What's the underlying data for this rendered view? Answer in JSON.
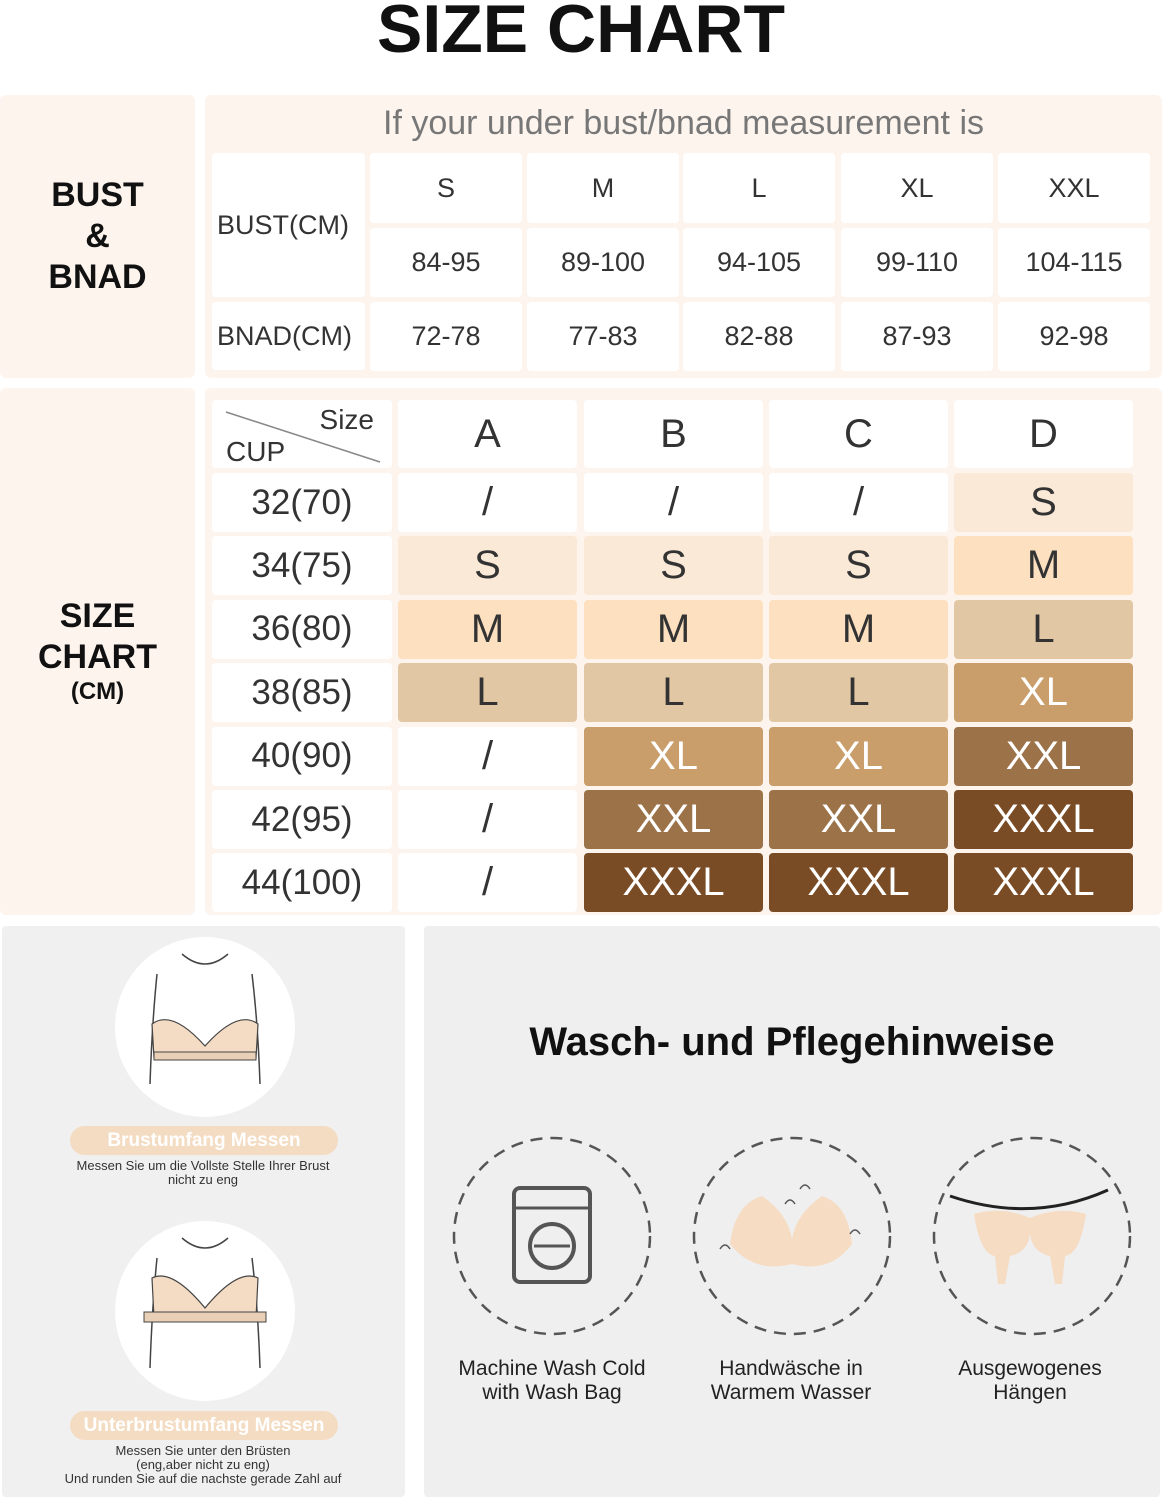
{
  "title": "SIZE CHART",
  "bust_section": {
    "label_lines": [
      "BUST",
      "&",
      "BNAD"
    ],
    "heading": "If your under bust/bnad measurement is",
    "sizes": [
      "S",
      "M",
      "L",
      "XL",
      "XXL"
    ],
    "rows": [
      {
        "label": "BUST(CM)",
        "values": [
          "84-95",
          "89-100",
          "94-105",
          "99-110",
          "104-115"
        ]
      },
      {
        "label": "BNAD(CM)",
        "values": [
          "72-78",
          "77-83",
          "82-88",
          "87-93",
          "92-98"
        ]
      }
    ]
  },
  "size_chart": {
    "label_lines": [
      "SIZE",
      "CHART",
      "(CM)"
    ],
    "corner_top": "Size",
    "corner_bottom": "CUP",
    "cups": [
      "A",
      "B",
      "C",
      "D"
    ],
    "rows": [
      {
        "band": "32(70)",
        "cells": [
          "/",
          "/",
          "/",
          "S"
        ],
        "colors": [
          "#ffffff",
          "#ffffff",
          "#ffffff",
          "#fbe9d7"
        ]
      },
      {
        "band": "34(75)",
        "cells": [
          "S",
          "S",
          "S",
          "M"
        ],
        "colors": [
          "#fbe9d7",
          "#fbe9d7",
          "#fbe9d7",
          "#fde0bf"
        ]
      },
      {
        "band": "36(80)",
        "cells": [
          "M",
          "M",
          "M",
          "L"
        ],
        "colors": [
          "#fde0bf",
          "#fde0bf",
          "#fde0bf",
          "#e2c7a5"
        ]
      },
      {
        "band": "38(85)",
        "cells": [
          "L",
          "L",
          "L",
          "XL"
        ],
        "colors": [
          "#e2c7a5",
          "#e2c7a5",
          "#e2c7a5",
          "#c99e6b"
        ]
      },
      {
        "band": "40(90)",
        "cells": [
          "/",
          "XL",
          "XL",
          "XXL"
        ],
        "colors": [
          "#ffffff",
          "#c99e6b",
          "#c99e6b",
          "#9c7249"
        ]
      },
      {
        "band": "42(95)",
        "cells": [
          "/",
          "XXL",
          "XXL",
          "XXXL"
        ],
        "colors": [
          "#ffffff",
          "#9c7249",
          "#9c7249",
          "#7a4c26"
        ]
      },
      {
        "band": "44(100)",
        "cells": [
          "/",
          "XXXL",
          "XXXL",
          "XXXL"
        ],
        "colors": [
          "#ffffff",
          "#7a4c26",
          "#7a4c26",
          "#7a4c26"
        ]
      }
    ]
  },
  "measure": [
    {
      "title": "Brustumfang Messen",
      "text_lines": [
        "Messen Sie um die Vollste Stelle Ihrer Brust",
        "nicht zu eng"
      ]
    },
    {
      "title": "Unterbrustumfang Messen",
      "text_lines": [
        "Messen Sie unter den Brüsten",
        "(eng,aber nicht zu eng)",
        "Und runden Sie auf die nachste gerade Zahl auf"
      ]
    }
  ],
  "care": {
    "title": "Wasch- und Pflegehinweise",
    "items": [
      {
        "label_lines": [
          "Machine Wash Cold",
          "with Wash Bag"
        ]
      },
      {
        "label_lines": [
          "Handwäsche in",
          "Warmem Wasser"
        ]
      },
      {
        "label_lines": [
          "Ausgewogenes",
          "Hängen"
        ]
      }
    ]
  }
}
